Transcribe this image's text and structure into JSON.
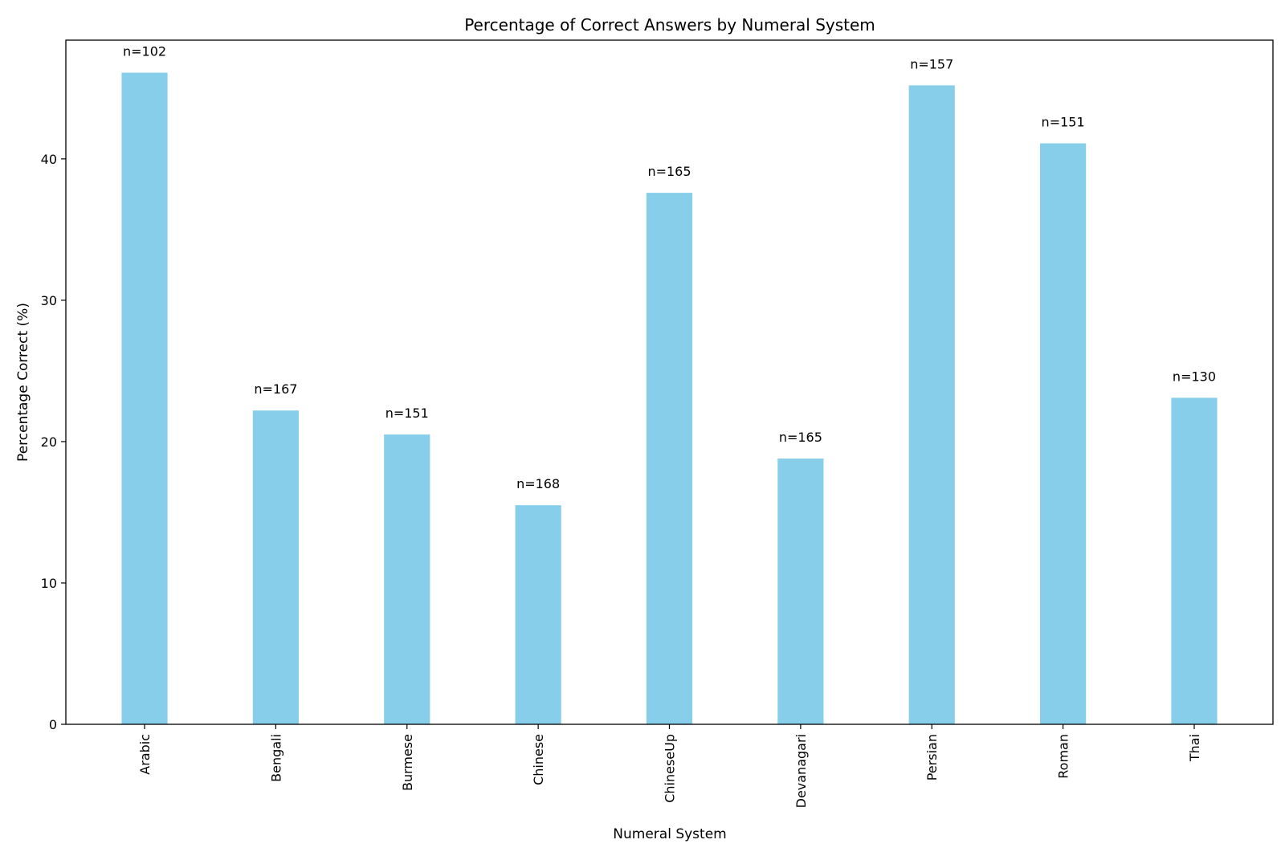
{
  "chart_data": {
    "type": "bar",
    "title": "Percentage of Correct Answers by Numeral System",
    "xlabel": "Numeral System",
    "ylabel": "Percentage Correct (%)",
    "categories": [
      "Arabic",
      "Bengali",
      "Burmese",
      "Chinese",
      "ChineseUp",
      "Devanagari",
      "Persian",
      "Roman",
      "Thai"
    ],
    "values": [
      46.1,
      22.2,
      20.5,
      15.5,
      37.6,
      18.8,
      45.2,
      41.1,
      23.1
    ],
    "annotations": [
      "n=102",
      "n=167",
      "n=151",
      "n=168",
      "n=165",
      "n=165",
      "n=157",
      "n=151",
      "n=130"
    ],
    "yticks": [
      "0",
      "10",
      "20",
      "30",
      "40"
    ],
    "ytick_values": [
      0,
      10,
      20,
      30,
      40
    ],
    "ylim": [
      0,
      48.4
    ],
    "grid": false,
    "colors": {
      "bar": "#87ceeb",
      "axis": "#000000"
    }
  }
}
